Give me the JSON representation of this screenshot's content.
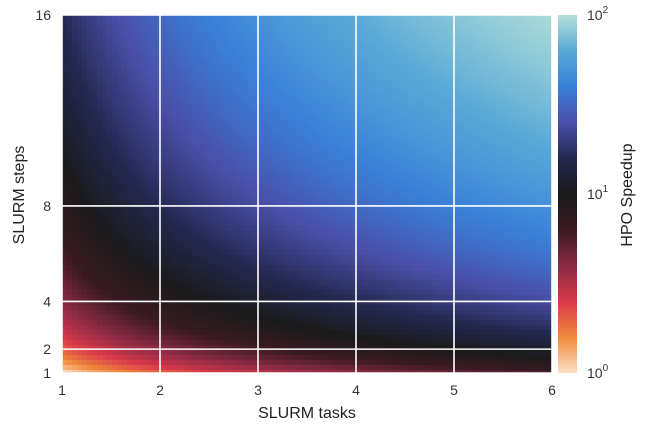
{
  "chart_data": {
    "type": "heatmap",
    "xlabel": "SLURM tasks",
    "ylabel": "SLURM steps",
    "colorbar_label": "HPO Speedup",
    "x_ticks": [
      1,
      2,
      3,
      4,
      5,
      6
    ],
    "y_ticks": [
      1,
      2,
      4,
      8,
      16
    ],
    "xlim": [
      1,
      6
    ],
    "ylim": [
      1,
      16
    ],
    "colorbar_scale": "log",
    "colorbar_range": [
      1,
      100
    ],
    "colorbar_ticks": [
      {
        "value": 1,
        "base": "10",
        "exp": "0"
      },
      {
        "value": 10,
        "base": "10",
        "exp": "1"
      },
      {
        "value": 100,
        "base": "10",
        "exp": "2"
      }
    ],
    "colormap": "icefire_r",
    "colormap_stops": [
      "#fde0c5",
      "#f08a3b",
      "#d8394a",
      "#8a2a44",
      "#3a1a22",
      "#1a1a1a",
      "#242850",
      "#4a4fa8",
      "#3a80d8",
      "#5aa9d6",
      "#b3e0d8"
    ],
    "z_model": "speedup ≈ tasks × steps",
    "grid": true
  }
}
